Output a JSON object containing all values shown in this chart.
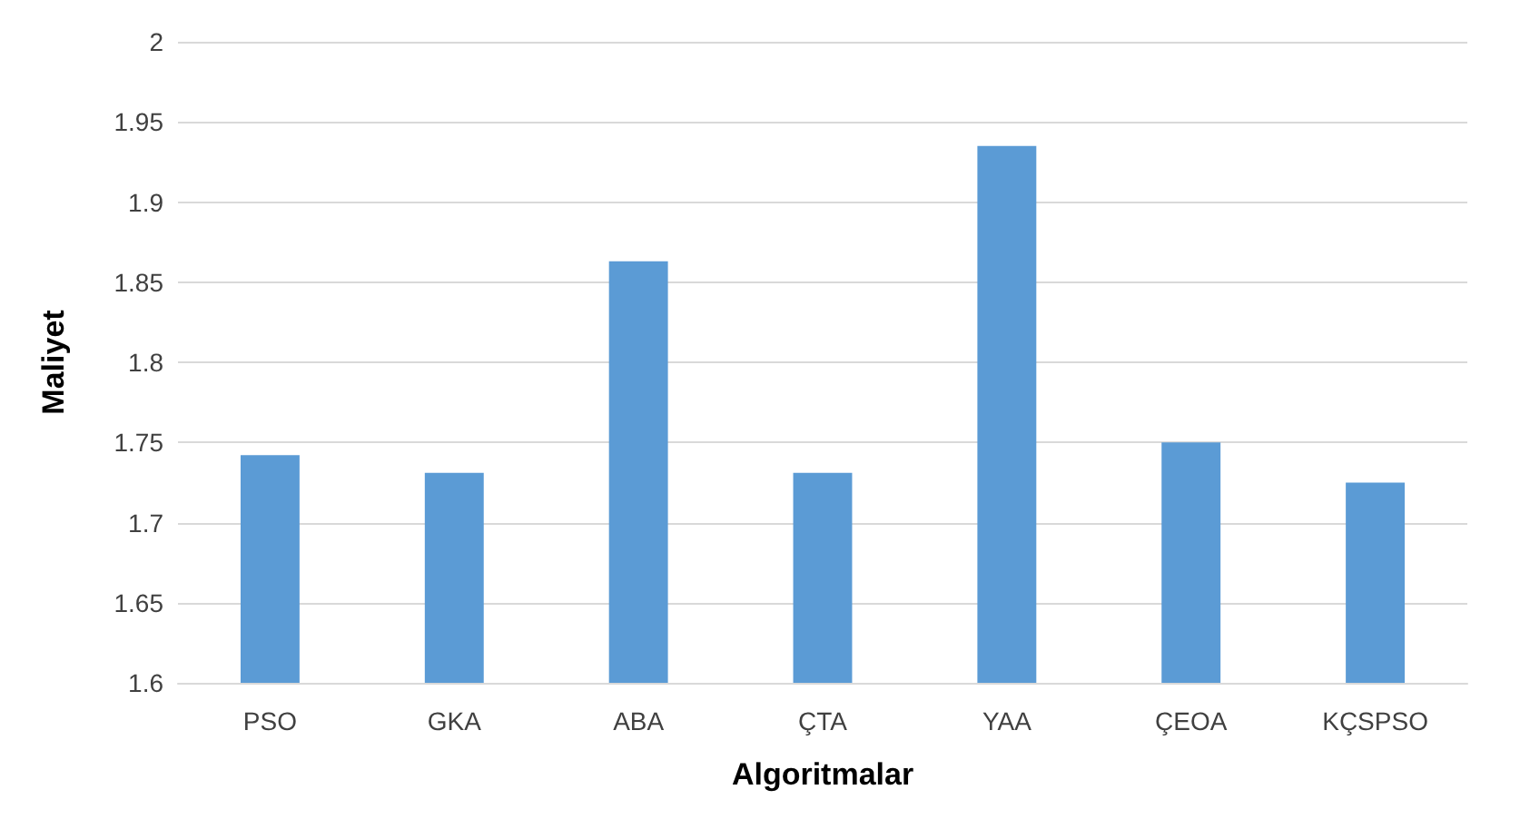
{
  "chart_data": {
    "type": "bar",
    "xlabel": "Algoritmalar",
    "ylabel": "Maliyet",
    "categories": [
      "PSO",
      "GKA",
      "ABA",
      "ÇTA",
      "YAA",
      "ÇEOA",
      "KÇSPSO"
    ],
    "values": [
      1.742,
      1.731,
      1.863,
      1.731,
      1.935,
      1.75,
      1.725
    ],
    "color": "#5b9bd5",
    "ylim": [
      1.6,
      2
    ],
    "yticks": [
      1.6,
      1.65,
      1.7,
      1.75,
      1.8,
      1.85,
      1.9,
      1.95,
      2
    ],
    "grid": "y"
  }
}
